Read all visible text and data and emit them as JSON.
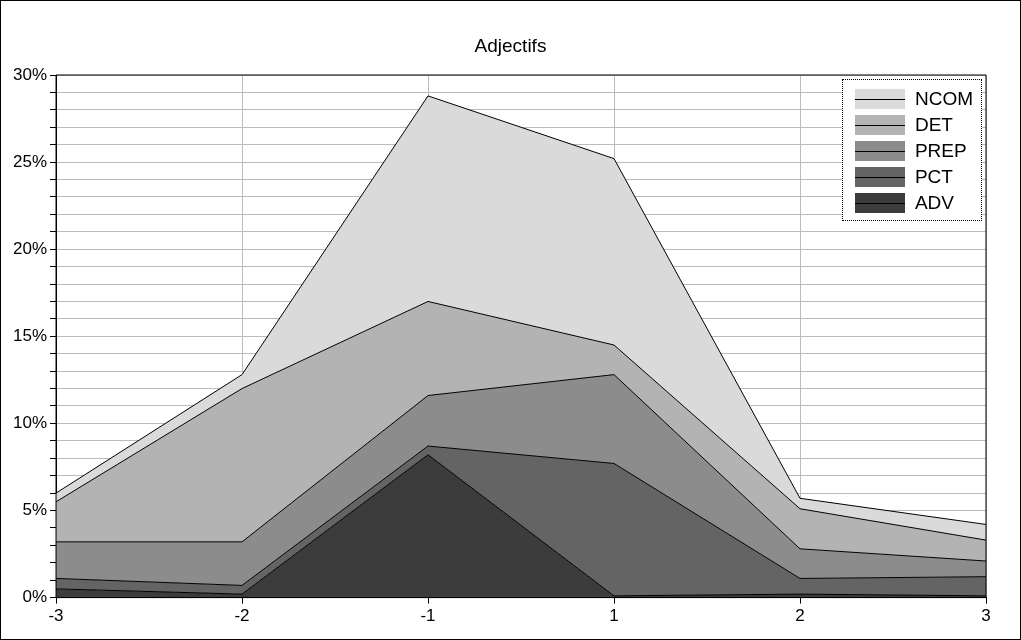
{
  "chart_data": {
    "type": "area",
    "title": "Adjectifs",
    "stacked": true,
    "marker": "none",
    "grid": true,
    "legend": "top right",
    "categories": [
      "-3",
      "-2",
      "-1",
      "1",
      "2",
      "3"
    ],
    "series": [
      {
        "name": "ADV",
        "color": "#3c3c3c",
        "values": [
          0.5,
          0.2,
          8.2,
          0.1,
          0.2,
          0.1
        ]
      },
      {
        "name": "PCT",
        "color": "#646464",
        "values": [
          0.6,
          0.5,
          0.5,
          7.6,
          0.9,
          1.1
        ]
      },
      {
        "name": "PREP",
        "color": "#8c8c8c",
        "values": [
          2.1,
          2.5,
          2.9,
          5.1,
          1.7,
          0.9
        ]
      },
      {
        "name": "DET",
        "color": "#b3b3b3",
        "values": [
          2.3,
          8.8,
          5.4,
          1.7,
          2.3,
          1.2
        ]
      },
      {
        "name": "NCOM",
        "color": "#dadada",
        "values": [
          0.5,
          0.8,
          11.8,
          10.7,
          0.6,
          0.9
        ]
      }
    ],
    "ylim": [
      0,
      30
    ],
    "yticks": [
      {
        "value": 0,
        "label": "0%"
      },
      {
        "value": 1,
        "label": null
      },
      {
        "value": 2,
        "label": null
      },
      {
        "value": 3,
        "label": null
      },
      {
        "value": 4,
        "label": null
      },
      {
        "value": 5,
        "label": "5%"
      },
      {
        "value": 6,
        "label": null
      },
      {
        "value": 7,
        "label": null
      },
      {
        "value": 8,
        "label": null
      },
      {
        "value": 9,
        "label": null
      },
      {
        "value": 10,
        "label": "10%"
      },
      {
        "value": 11,
        "label": null
      },
      {
        "value": 12,
        "label": null
      },
      {
        "value": 13,
        "label": null
      },
      {
        "value": 14,
        "label": null
      },
      {
        "value": 15,
        "label": "15%"
      },
      {
        "value": 16,
        "label": null
      },
      {
        "value": 17,
        "label": null
      },
      {
        "value": 18,
        "label": null
      },
      {
        "value": 19,
        "label": null
      },
      {
        "value": 20,
        "label": "20%"
      },
      {
        "value": 21,
        "label": null
      },
      {
        "value": 22,
        "label": null
      },
      {
        "value": 23,
        "label": null
      },
      {
        "value": 24,
        "label": null
      },
      {
        "value": 25,
        "label": "25%"
      },
      {
        "value": 26,
        "label": null
      },
      {
        "value": 27,
        "label": null
      },
      {
        "value": 28,
        "label": null
      },
      {
        "value": 29,
        "label": null
      },
      {
        "value": 30,
        "label": "30%"
      }
    ]
  }
}
